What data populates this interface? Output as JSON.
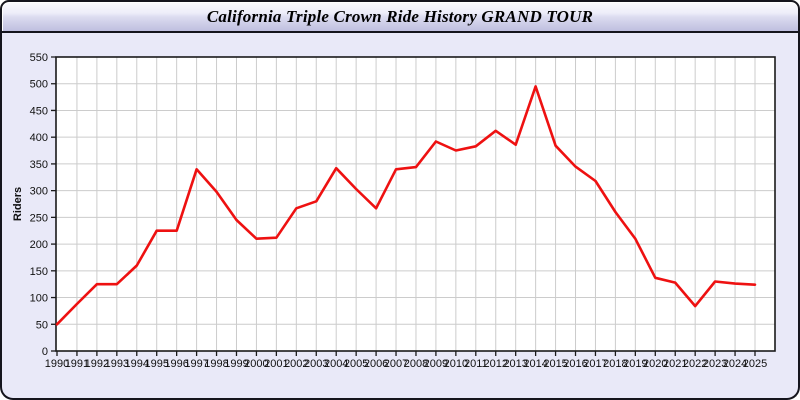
{
  "header": {
    "title": "California Triple Crown Ride History GRAND TOUR"
  },
  "chart_data": {
    "type": "line",
    "title": "California Triple Crown Ride History GRAND TOUR",
    "xlabel": "",
    "ylabel": "Riders",
    "x": [
      1990,
      1991,
      1992,
      1993,
      1994,
      1995,
      1996,
      1997,
      1998,
      1999,
      2000,
      2001,
      2002,
      2003,
      2004,
      2005,
      2006,
      2007,
      2008,
      2009,
      2010,
      2011,
      2012,
      2013,
      2014,
      2015,
      2016,
      2017,
      2018,
      2019,
      2020,
      2021,
      2022,
      2023,
      2024,
      2025
    ],
    "series": [
      {
        "name": "Riders",
        "values": [
          50,
          88,
          125,
          125,
          160,
          225,
          225,
          340,
          298,
          245,
          210,
          212,
          267,
          280,
          342,
          303,
          267,
          340,
          344,
          392,
          375,
          383,
          412,
          386,
          495,
          384,
          345,
          318,
          260,
          210,
          137,
          128,
          84,
          130,
          126,
          124
        ]
      }
    ],
    "ylim": [
      0,
      550
    ],
    "ytick_step": 50,
    "grid": true,
    "legend_position": "none",
    "line_color": "#ee1111",
    "plot_background": "#ffffff",
    "panel_background": "#e9e9f8",
    "grid_color": "#cccccc",
    "axis_color": "#1a1a1a"
  }
}
